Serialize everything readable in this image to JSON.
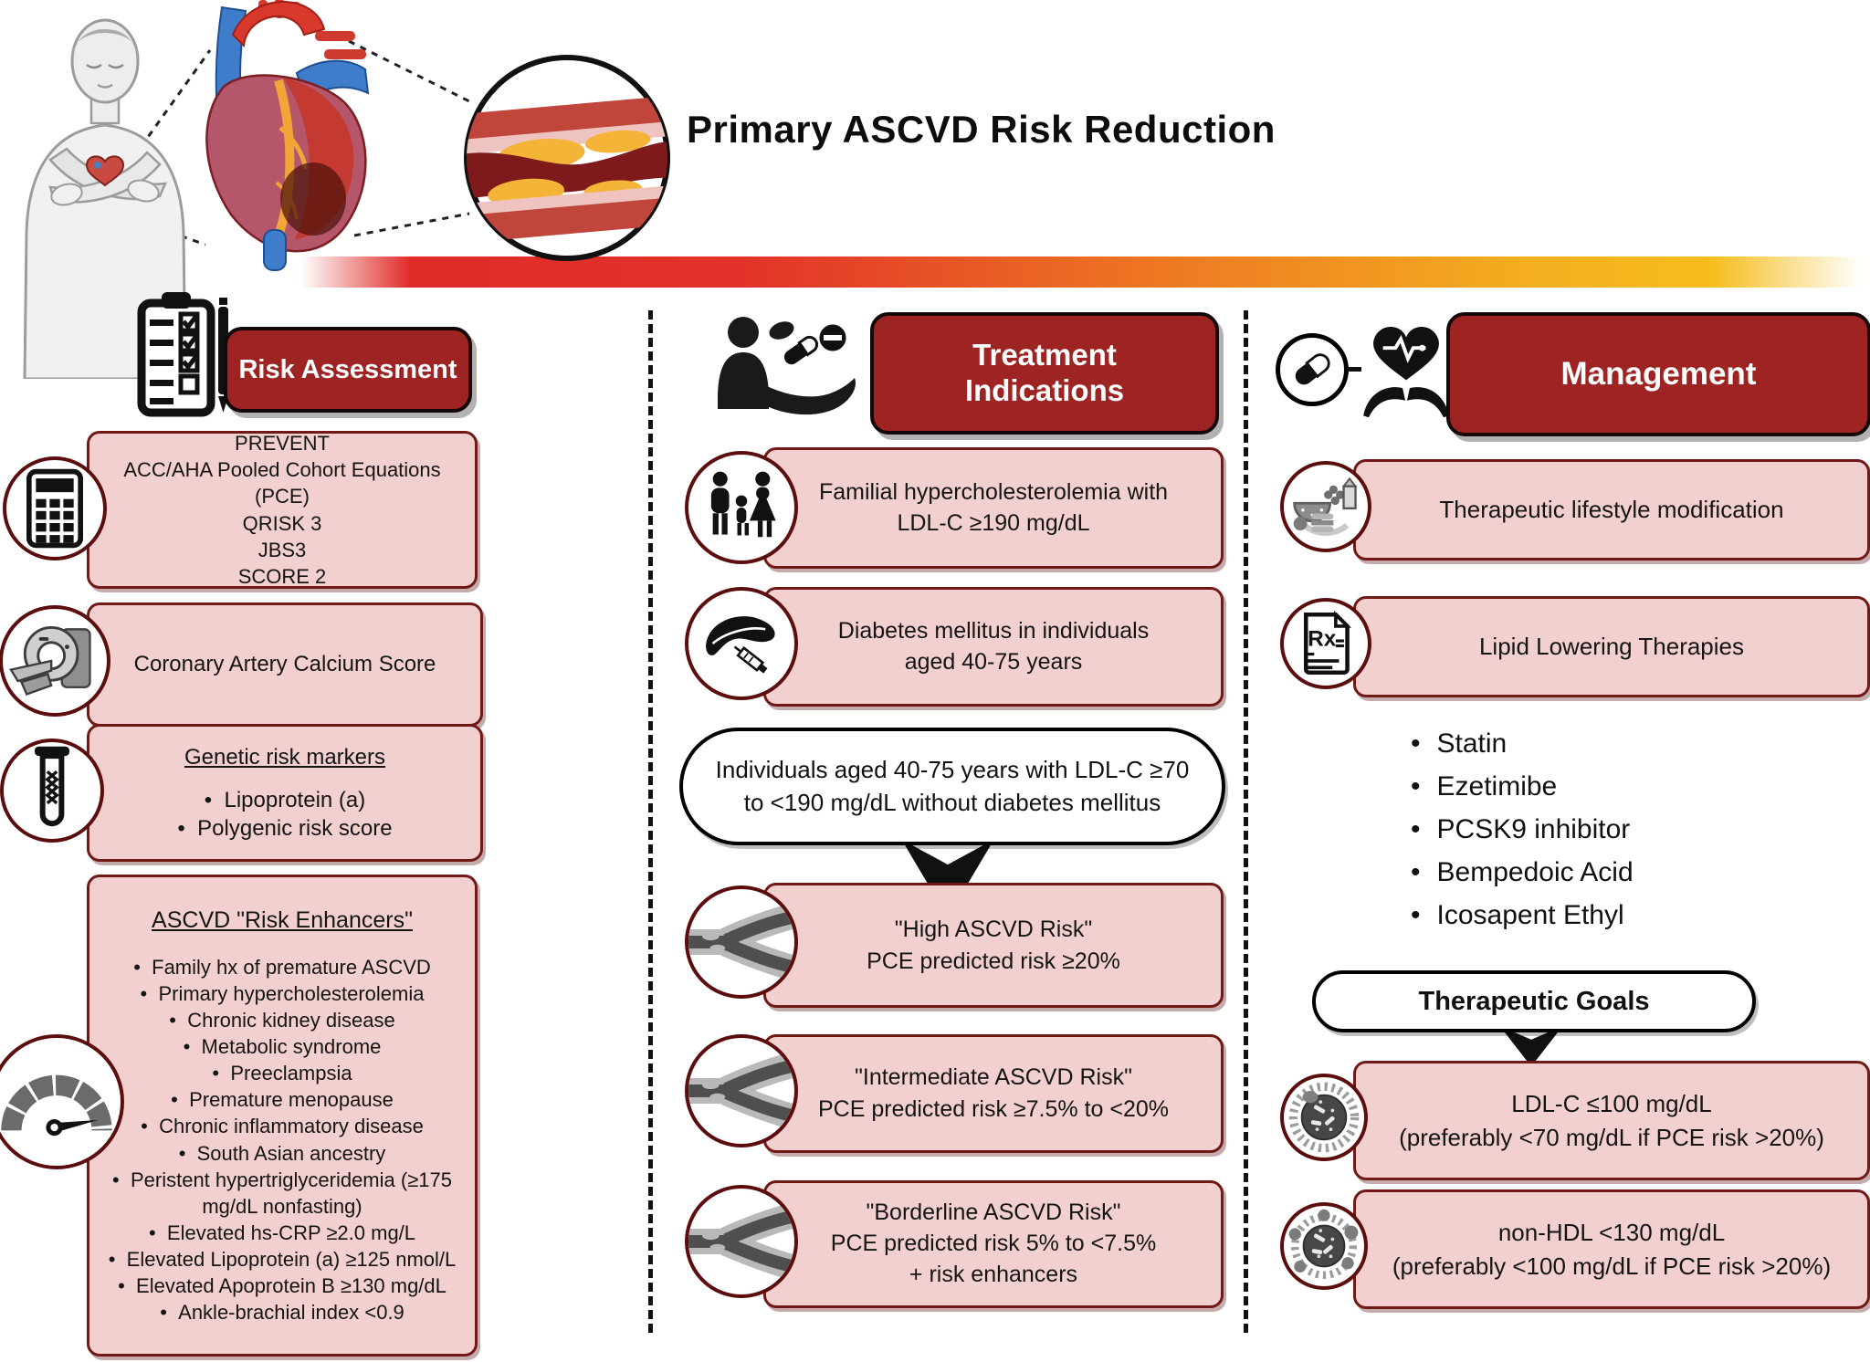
{
  "title": "Primary ASCVD Risk Reduction",
  "colors": {
    "header_bg": "#9d2422",
    "box_bg": "#f3d0d0",
    "box_border": "#701916",
    "gradient": [
      "#e02b28",
      "#ee7b22",
      "#f6bd1d"
    ]
  },
  "risk_assessment": {
    "header": "Risk Assessment",
    "icon": "clipboard-checklist-icon",
    "score_box": {
      "icon": "calculator-icon",
      "lines": [
        "PREVENT",
        "ACC/AHA Pooled Cohort Equations (PCE)",
        "QRISK 3",
        "JBS3",
        "SCORE 2"
      ]
    },
    "cac_box": {
      "icon": "ct-scanner-icon",
      "text": "Coronary Artery Calcium Score"
    },
    "genetic_box": {
      "icon": "dna-test-tube-icon",
      "title": "Genetic risk markers",
      "bullets": [
        "Lipoprotein (a)",
        "Polygenic risk score"
      ]
    },
    "enhancers_box": {
      "icon": "risk-gauge-icon",
      "title": "ASCVD \"Risk Enhancers\"",
      "bullets": [
        "Family hx of premature ASCVD",
        "Primary hypercholesterolemia",
        "Chronic kidney disease",
        "Metabolic syndrome",
        "Preeclampsia",
        "Premature menopause",
        "Chronic inflammatory disease",
        "South Asian ancestry",
        "Peristent hypertriglyceridemia (≥175 mg/dL nonfasting)",
        "Elevated hs-CRP ≥2.0 mg/L",
        "Elevated Lipoprotein (a) ≥125 nmol/L",
        "Elevated Apoprotein B ≥130 mg/dL",
        "Ankle-brachial index <0.9"
      ]
    }
  },
  "treatment_indications": {
    "header_lines": [
      "Treatment",
      "Indications"
    ],
    "icon": "caregiver-medication-icon",
    "fh_box": {
      "icon": "family-icon",
      "lines": [
        "Familial hypercholesterolemia with",
        "LDL-C ≥190 mg/dL"
      ]
    },
    "dm_box": {
      "icon": "pancreas-icon",
      "lines": [
        "Diabetes mellitus in individuals",
        "aged 40-75 years"
      ]
    },
    "cohort_note": {
      "lines": [
        "Individuals aged 40-75 years with LDL-C ≥70",
        "to <190 mg/dL without diabetes mellitus"
      ]
    },
    "high_box": {
      "icon": "stenosed-artery-icon",
      "lines": [
        "\"High ASCVD Risk\"",
        "PCE predicted risk ≥20%"
      ]
    },
    "intermediate_box": {
      "icon": "stenosed-artery-icon",
      "lines": [
        "\"Intermediate ASCVD Risk\"",
        "PCE predicted risk ≥7.5% to <20%"
      ]
    },
    "borderline_box": {
      "icon": "stenosed-artery-icon",
      "lines": [
        "\"Borderline ASCVD Risk\"",
        "PCE predicted risk 5% to <7.5%",
        "+ risk enhancers"
      ]
    }
  },
  "management": {
    "header": "Management",
    "icons": [
      "capsule-icon",
      "hands-holding-heart-icon"
    ],
    "lifestyle_box": {
      "icon": "healthy-food-icon",
      "text": "Therapeutic lifestyle modification"
    },
    "lipid_box": {
      "icon": "rx-prescription-icon",
      "icon_glyph": "Rx",
      "text": "Lipid Lowering Therapies"
    },
    "medications": [
      "Statin",
      "Ezetimibe",
      "PCSK9 inhibitor",
      "Bempedoic Acid",
      "Icosapent Ethyl"
    ],
    "goals": {
      "title": "Therapeutic Goals",
      "ldl_box": {
        "icon": "ldl-particle-icon",
        "lines": [
          "LDL-C ≤100 mg/dL",
          "(preferably <70 mg/dL if PCE risk >20%)"
        ]
      },
      "nonhdl_box": {
        "icon": "lipoprotein-particle-icon",
        "lines": [
          "non-HDL <130 mg/dL",
          "(preferably <100 mg/dL if PCE risk >20%)"
        ]
      }
    }
  }
}
